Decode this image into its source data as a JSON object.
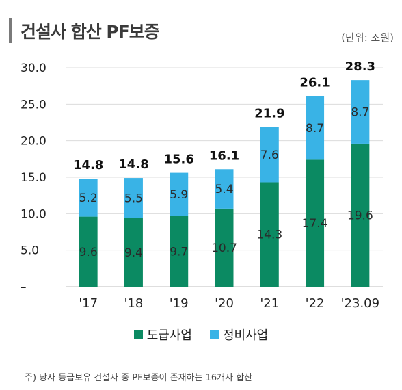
{
  "header": {
    "title": "건설사 합산 PF보증",
    "unit": "(단위: 조원)"
  },
  "chart_data": {
    "type": "bar",
    "stacked": true,
    "title": "건설사 합산 PF보증",
    "xlabel": "",
    "ylabel": "",
    "categories": [
      "'17",
      "'18",
      "'19",
      "'20",
      "'21",
      "'22",
      "'23.09"
    ],
    "series": [
      {
        "name": "도급사업",
        "color": "#0b8a62",
        "values": [
          9.6,
          9.4,
          9.7,
          10.7,
          14.3,
          17.4,
          19.6
        ]
      },
      {
        "name": "정비사업",
        "color": "#39b3e6",
        "values": [
          5.2,
          5.5,
          5.9,
          5.4,
          7.6,
          8.7,
          8.7
        ]
      }
    ],
    "totals": [
      14.8,
      14.8,
      15.6,
      16.1,
      21.9,
      26.1,
      28.3
    ],
    "yticks": [
      "–",
      "5.0",
      "10.0",
      "15.0",
      "20.0",
      "25.0",
      "30.0"
    ],
    "ylim": [
      0,
      30
    ],
    "grid": true,
    "legend": "bottom-center"
  },
  "footnote": "주) 당사 등급보유 건설사 중 PF보증이 존재하는 16개사 합산"
}
